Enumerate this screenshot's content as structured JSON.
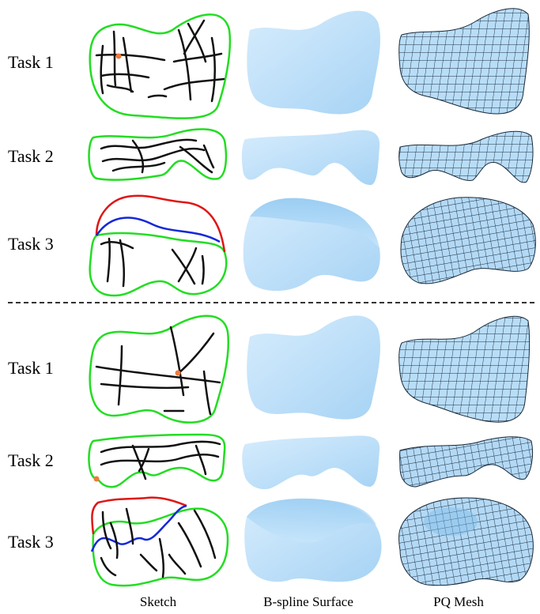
{
  "rows": [
    {
      "label": "Task 1"
    },
    {
      "label": "Task 2"
    },
    {
      "label": "Task 3"
    },
    {
      "label": "Task 1"
    },
    {
      "label": "Task 2"
    },
    {
      "label": "Task 3"
    }
  ],
  "columns": {
    "sketch": "Sketch",
    "surface": "B-spline Surface",
    "mesh": "PQ Mesh"
  },
  "colors": {
    "boundary_green": "#22dd22",
    "curve_black": "#111111",
    "point_orange": "#f07a3a",
    "curve_red": "#e01515",
    "curve_blue": "#1428d8",
    "surface_light": "#cfe8fb",
    "surface_mid": "#b5dcf8",
    "surface_dark": "#8fc6f0",
    "mesh_fill": "#b8ddf7",
    "mesh_line": "#1b2a3a"
  }
}
